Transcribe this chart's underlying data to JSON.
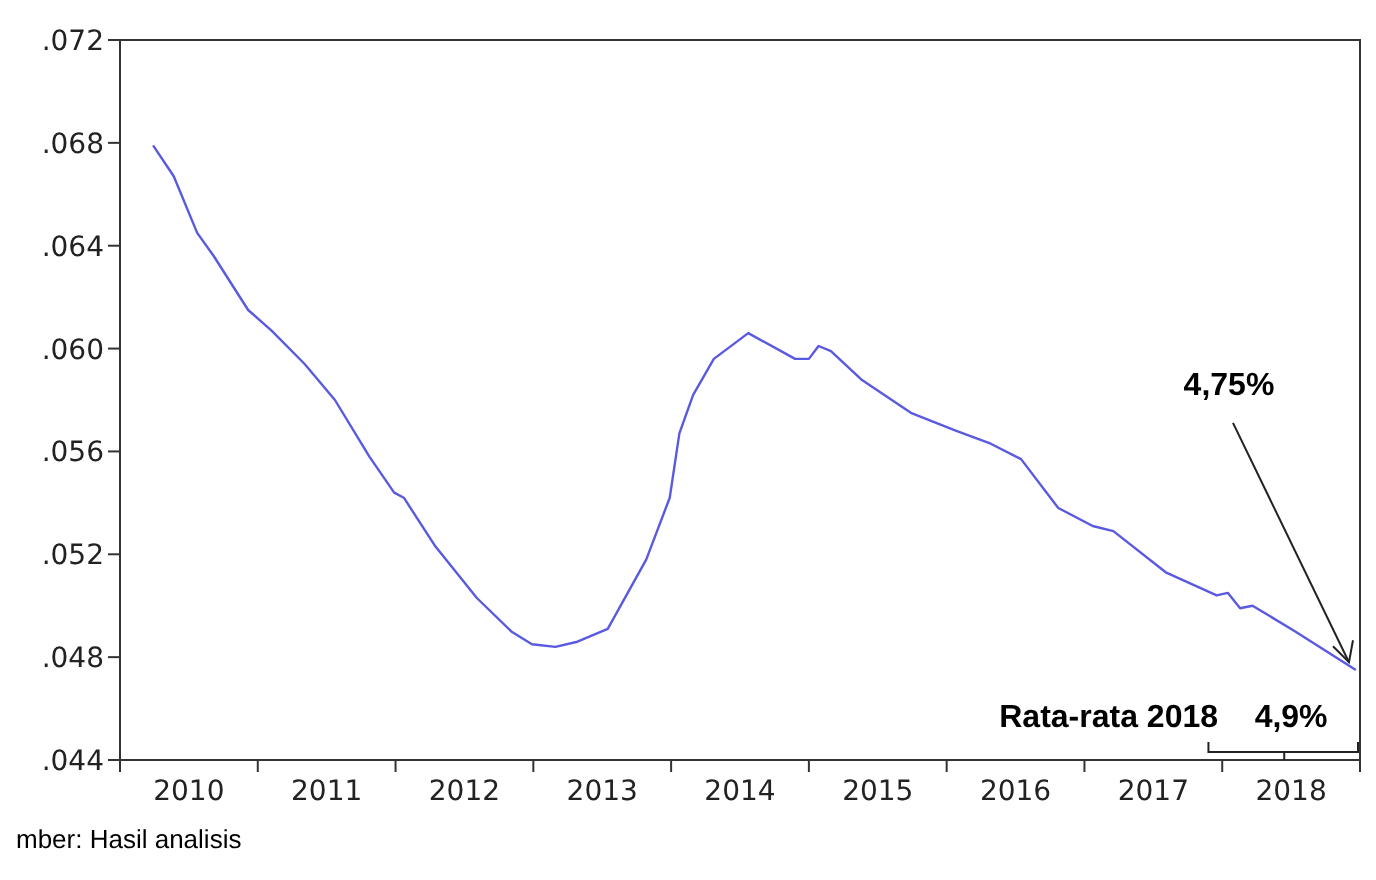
{
  "chart_data": {
    "type": "line",
    "x": [
      2010.24,
      2010.39,
      2010.56,
      2010.68,
      2010.93,
      2011.1,
      2011.34,
      2011.56,
      2011.81,
      2011.99,
      2012.06,
      2012.29,
      2012.59,
      2012.84,
      2012.99,
      2013.16,
      2013.32,
      2013.54,
      2013.82,
      2013.99,
      2014.06,
      2014.16,
      2014.31,
      2014.56,
      2014.9,
      2015.0,
      2015.07,
      2015.16,
      2015.38,
      2015.74,
      2016.07,
      2016.32,
      2016.54,
      2016.81,
      2017.06,
      2017.21,
      2017.59,
      2017.96,
      2018.04,
      2018.13,
      2018.22,
      2018.53,
      2018.97
    ],
    "series": [
      {
        "color": "#5a5ae0",
        "values": [
          0.0679,
          0.0667,
          0.0645,
          0.0636,
          0.0615,
          0.0607,
          0.0594,
          0.058,
          0.0558,
          0.0544,
          0.0542,
          0.0523,
          0.0503,
          0.049,
          0.0485,
          0.0484,
          0.0486,
          0.0491,
          0.0518,
          0.0542,
          0.0567,
          0.0582,
          0.0596,
          0.0606,
          0.0596,
          0.0596,
          0.0601,
          0.0599,
          0.0588,
          0.0575,
          0.0568,
          0.0563,
          0.0557,
          0.0538,
          0.0531,
          0.0529,
          0.0513,
          0.0504,
          0.0505,
          0.0499,
          0.05,
          0.049,
          0.0475
        ]
      }
    ],
    "xlim": [
      2010,
      2019
    ],
    "xticks": [
      {
        "value": 2010,
        "label": null
      },
      {
        "value": 2010.5,
        "label": "2010"
      },
      {
        "value": 2011,
        "label": null
      },
      {
        "value": 2011.5,
        "label": "2011"
      },
      {
        "value": 2012,
        "label": null
      },
      {
        "value": 2012.5,
        "label": "2012"
      },
      {
        "value": 2013,
        "label": null
      },
      {
        "value": 2013.5,
        "label": "2013"
      },
      {
        "value": 2014,
        "label": null
      },
      {
        "value": 2014.5,
        "label": "2014"
      },
      {
        "value": 2015,
        "label": null
      },
      {
        "value": 2015.5,
        "label": "2015"
      },
      {
        "value": 2016,
        "label": null
      },
      {
        "value": 2016.5,
        "label": "2016"
      },
      {
        "value": 2017,
        "label": null
      },
      {
        "value": 2017.5,
        "label": "2017"
      },
      {
        "value": 2018,
        "label": null
      },
      {
        "value": 2018.5,
        "label": "2018"
      },
      {
        "value": 2019,
        "label": null
      }
    ],
    "ylim": [
      0.044,
      0.072
    ],
    "yticks": [
      {
        "value": 0.044,
        "label": ".044"
      },
      {
        "value": 0.048,
        "label": ".048"
      },
      {
        "value": 0.052,
        "label": ".052"
      },
      {
        "value": 0.056,
        "label": ".056"
      },
      {
        "value": 0.06,
        "label": ".060"
      },
      {
        "value": 0.064,
        "label": ".064"
      },
      {
        "value": 0.068,
        "label": ".068"
      },
      {
        "value": 0.072,
        "label": ".072"
      }
    ],
    "grid": false,
    "legend": false,
    "marker": "none",
    "line_style": "solid",
    "annotations": [
      {
        "text": "4,75%",
        "x": 2018.92,
        "y": 0.0478
      },
      "Rata-rata 2018",
      "4,9%",
      "mber: Hasil analisis"
    ]
  }
}
